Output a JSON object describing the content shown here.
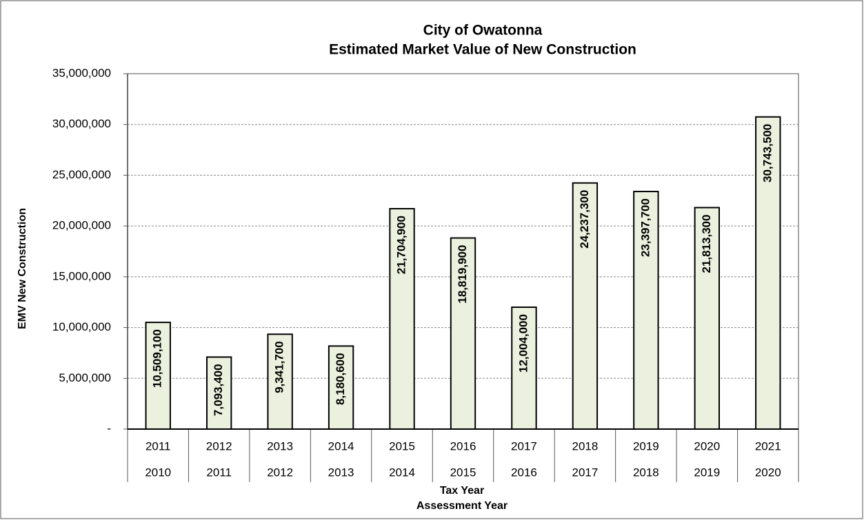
{
  "chart_data": {
    "type": "bar",
    "title": [
      "City of Owatonna",
      "Estimated Market Value of New Construction"
    ],
    "y_label": "EMV New Construction",
    "x_label": [
      "Tax Year",
      "Assessment Year"
    ],
    "categories": [
      "2011",
      "2012",
      "2013",
      "2014",
      "2015",
      "2016",
      "2017",
      "2018",
      "2019",
      "2020",
      "2021"
    ],
    "categories2": [
      "2010",
      "2011",
      "2012",
      "2013",
      "2014",
      "2015",
      "2016",
      "2017",
      "2018",
      "2019",
      "2020"
    ],
    "values": [
      10509100,
      7093400,
      9341700,
      8180600,
      21704900,
      18819900,
      12004000,
      24237300,
      23397700,
      21813300,
      30743500
    ],
    "value_labels": [
      "10,509,100",
      "7,093,400",
      "9,341,700",
      "8,180,600",
      "21,704,900",
      "18,819,900",
      "12,004,000",
      "24,237,300",
      "23,397,700",
      "21,813,300",
      "30,743,500"
    ],
    "color": "#ebf1de",
    "ylim": [
      0,
      35000000
    ],
    "yticks": [
      {
        "value": 0,
        "label": "-"
      },
      {
        "value": 5000000,
        "label": "5,000,000"
      },
      {
        "value": 10000000,
        "label": "10,000,000"
      },
      {
        "value": 15000000,
        "label": "15,000,000"
      },
      {
        "value": 20000000,
        "label": "20,000,000"
      },
      {
        "value": 25000000,
        "label": "25,000,000"
      },
      {
        "value": 30000000,
        "label": "30,000,000"
      },
      {
        "value": 35000000,
        "label": "35,000,000"
      }
    ],
    "grid": true
  }
}
